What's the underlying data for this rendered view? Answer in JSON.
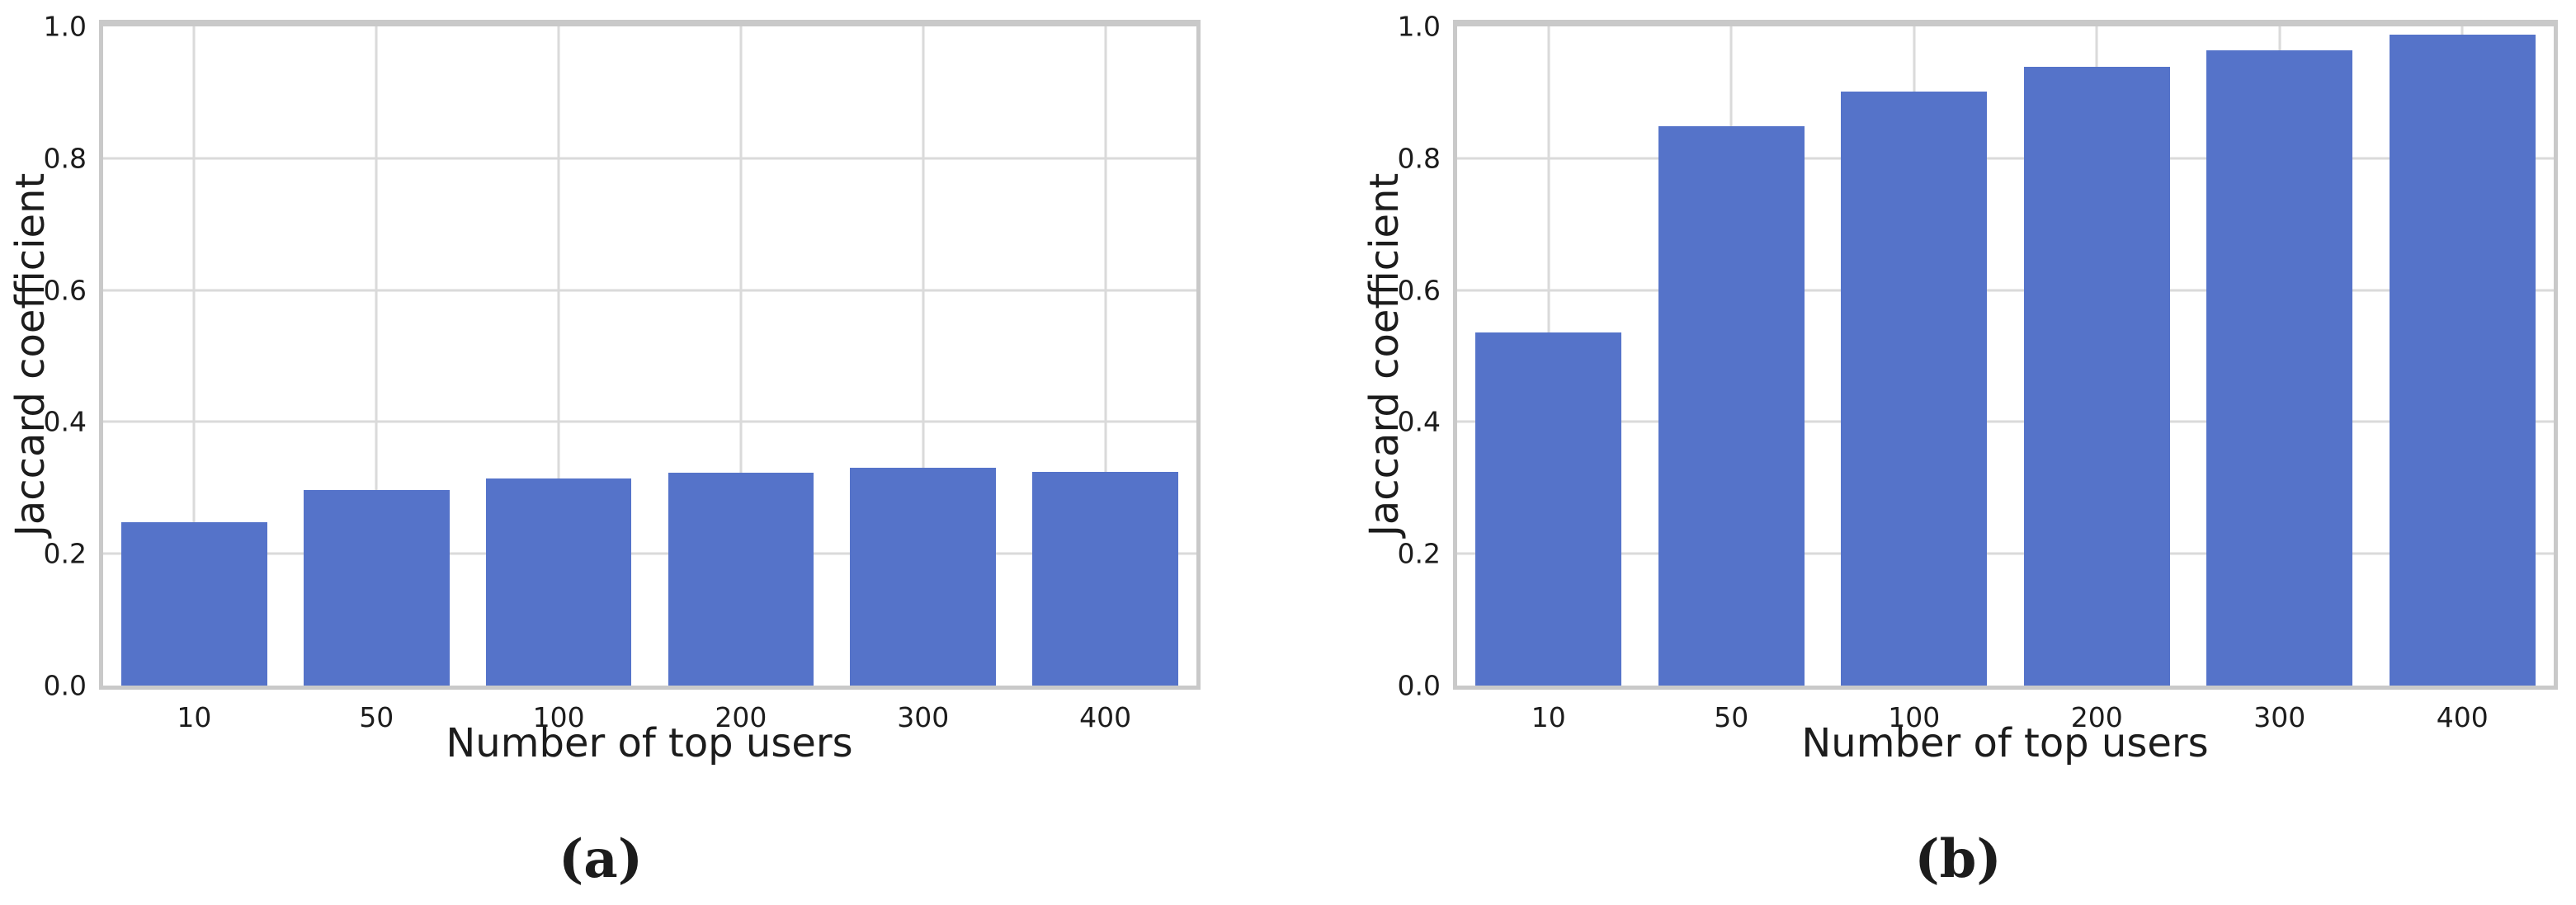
{
  "style": {
    "bar_color": "#5573C9",
    "grid_color": "#DADADA",
    "spine_color": "#C9C9C9",
    "text_color": "#1C1C1C",
    "background": "#FFFFFF"
  },
  "figure": {
    "captions": [
      {
        "label": "(a)"
      },
      {
        "label": "(b)"
      }
    ]
  },
  "chart_data": [
    {
      "type": "bar",
      "title": "(a)",
      "categories": [
        "10",
        "50",
        "100",
        "200",
        "300",
        "400"
      ],
      "values": [
        0.248,
        0.297,
        0.314,
        0.323,
        0.33,
        0.324
      ],
      "xlabel": "Number of top users",
      "ylabel": "Jaccard coefficient",
      "ylim": [
        0,
        1.0
      ],
      "yticks": [
        0.0,
        0.2,
        0.4,
        0.6,
        0.8,
        1.0
      ],
      "grid": "both",
      "legend": null,
      "bar_width_fraction": 0.8
    },
    {
      "type": "bar",
      "title": "(b)",
      "categories": [
        "10",
        "50",
        "100",
        "200",
        "300",
        "400"
      ],
      "values": [
        0.536,
        0.848,
        0.901,
        0.939,
        0.964,
        0.988
      ],
      "xlabel": "Number of top users",
      "ylabel": "Jaccard coefficient",
      "ylim": [
        0,
        1.0
      ],
      "yticks": [
        0.0,
        0.2,
        0.4,
        0.6,
        0.8,
        1.0
      ],
      "grid": "both",
      "legend": null,
      "bar_width_fraction": 0.8
    }
  ]
}
